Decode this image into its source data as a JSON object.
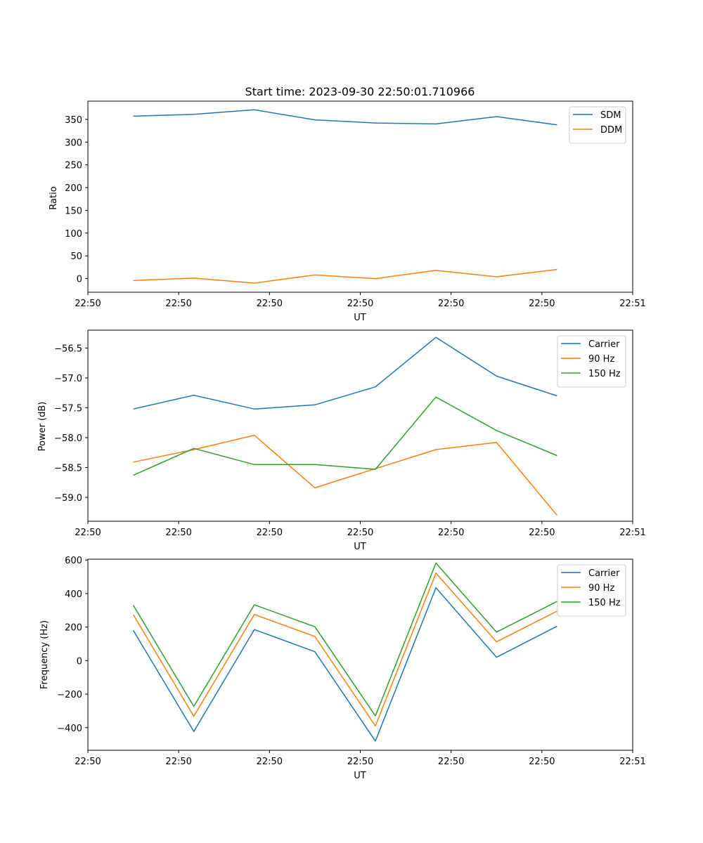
{
  "figure_title": "Start time: 2023-09-30 22:50:01.710966",
  "chart_data": [
    {
      "type": "line",
      "title": "Start time: 2023-09-30 22:50:01.710966",
      "xlabel": "UT",
      "ylabel": "Ratio",
      "xlim": [
        0,
        9
      ],
      "ylim": [
        -30,
        390
      ],
      "x_ticks": [
        0,
        1.5,
        3,
        4.5,
        6,
        7.5,
        9
      ],
      "x_tick_labels": [
        "22:50",
        "22:50",
        "22:50",
        "22:50",
        "22:50",
        "22:50",
        "22:51"
      ],
      "y_ticks": [
        0,
        50,
        100,
        150,
        200,
        250,
        300,
        350
      ],
      "y_tick_labels": [
        "0",
        "50",
        "100",
        "150",
        "200",
        "250",
        "300",
        "350"
      ],
      "legend_position": "top-right",
      "x": [
        0.75,
        1.75,
        2.75,
        3.75,
        4.75,
        5.75,
        6.75,
        7.75
      ],
      "series": [
        {
          "name": "SDM",
          "color": "#1f77b4",
          "values": [
            357,
            361,
            371,
            349,
            342,
            340,
            356,
            338
          ]
        },
        {
          "name": "DDM",
          "color": "#ff7f0e",
          "values": [
            -4,
            1,
            -10,
            8,
            0,
            18,
            4,
            20
          ]
        }
      ]
    },
    {
      "type": "line",
      "title": "",
      "xlabel": "UT",
      "ylabel": "Power (dB)",
      "xlim": [
        0,
        9
      ],
      "ylim": [
        -59.4,
        -56.2
      ],
      "x_ticks": [
        0,
        1.5,
        3,
        4.5,
        6,
        7.5,
        9
      ],
      "x_tick_labels": [
        "22:50",
        "22:50",
        "22:50",
        "22:50",
        "22:50",
        "22:50",
        "22:51"
      ],
      "y_ticks": [
        -59.0,
        -58.5,
        -58.0,
        -57.5,
        -57.0,
        -56.5
      ],
      "y_tick_labels": [
        "−59.0",
        "−58.5",
        "−58.0",
        "−57.5",
        "−57.0",
        "−56.5"
      ],
      "legend_position": "top-right",
      "x": [
        0.75,
        1.75,
        2.75,
        3.75,
        4.75,
        5.75,
        6.75,
        7.75
      ],
      "series": [
        {
          "name": "Carrier",
          "color": "#1f77b4",
          "values": [
            -57.52,
            -57.29,
            -57.52,
            -57.45,
            -57.15,
            -56.32,
            -56.97,
            -57.3
          ]
        },
        {
          "name": "90 Hz",
          "color": "#ff7f0e",
          "values": [
            -58.41,
            -58.2,
            -57.96,
            -58.84,
            -58.52,
            -58.2,
            -58.08,
            -59.3
          ]
        },
        {
          "name": "150 Hz",
          "color": "#2ca02c",
          "values": [
            -58.63,
            -58.18,
            -58.45,
            -58.45,
            -58.53,
            -57.32,
            -57.88,
            -58.3
          ]
        }
      ]
    },
    {
      "type": "line",
      "title": "",
      "xlabel": "UT",
      "ylabel": "Frequency (Hz)",
      "xlim": [
        0,
        9
      ],
      "ylim": [
        -535,
        605
      ],
      "x_ticks": [
        0,
        1.5,
        3,
        4.5,
        6,
        7.5,
        9
      ],
      "x_tick_labels": [
        "22:50",
        "22:50",
        "22:50",
        "22:50",
        "22:50",
        "22:50",
        "22:51"
      ],
      "y_ticks": [
        -400,
        -200,
        0,
        200,
        400,
        600
      ],
      "y_tick_labels": [
        "−400",
        "−200",
        "0",
        "200",
        "400",
        "600"
      ],
      "legend_position": "top-right",
      "x": [
        0.75,
        1.75,
        2.75,
        3.75,
        4.75,
        5.75,
        6.75,
        7.75
      ],
      "series": [
        {
          "name": "Carrier",
          "color": "#1f77b4",
          "values": [
            180,
            -423,
            185,
            53,
            -480,
            435,
            20,
            205
          ]
        },
        {
          "name": "90 Hz",
          "color": "#ff7f0e",
          "values": [
            274,
            -332,
            275,
            144,
            -390,
            522,
            112,
            295
          ]
        },
        {
          "name": "150 Hz",
          "color": "#2ca02c",
          "values": [
            330,
            -273,
            333,
            202,
            -330,
            582,
            170,
            353
          ]
        }
      ]
    }
  ]
}
